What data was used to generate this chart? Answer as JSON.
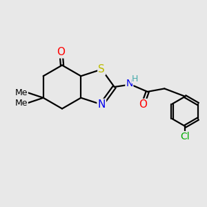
{
  "bg_color": "#e8e8e8",
  "atom_colors": {
    "O": "#ff0000",
    "N": "#0000ee",
    "S": "#bbbb00",
    "Cl": "#00aa00",
    "H": "#44aaaa",
    "C": "#000000"
  },
  "bond_color": "#000000",
  "bond_width": 1.6,
  "font_size": 10,
  "figsize": [
    3.0,
    3.0
  ],
  "dpi": 100,
  "xlim": [
    0,
    10
  ],
  "ylim": [
    0,
    10
  ]
}
